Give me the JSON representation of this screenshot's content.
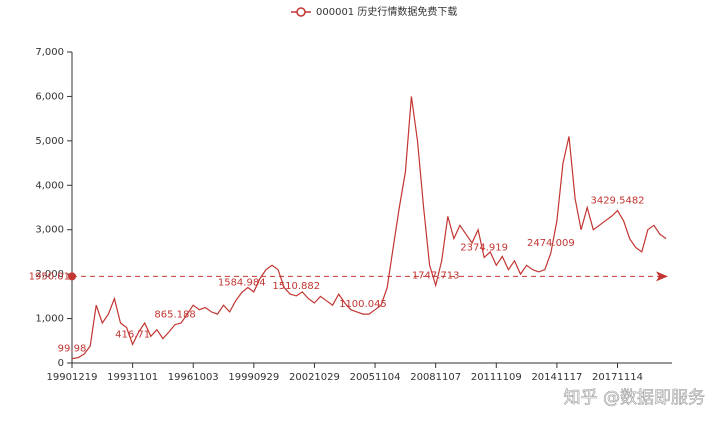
{
  "chart_data": {
    "type": "line",
    "legend": "000001 历史行情数据免费下载",
    "watermark": "知乎 @数据即服务",
    "categories": [
      "19901219",
      null,
      null,
      null,
      null,
      null,
      null,
      null,
      null,
      null,
      "19931101",
      null,
      null,
      null,
      null,
      null,
      null,
      null,
      null,
      null,
      "19961003",
      null,
      null,
      null,
      null,
      null,
      null,
      null,
      null,
      null,
      "19990929",
      null,
      null,
      null,
      null,
      null,
      null,
      null,
      null,
      null,
      "20021029",
      null,
      null,
      null,
      null,
      null,
      null,
      null,
      null,
      null,
      "20051104",
      null,
      null,
      null,
      null,
      null,
      null,
      null,
      null,
      null,
      "20081107",
      null,
      null,
      null,
      null,
      null,
      null,
      null,
      null,
      null,
      "20111109",
      null,
      null,
      null,
      null,
      null,
      null,
      null,
      null,
      null,
      "20141117",
      null,
      null,
      null,
      null,
      null,
      null,
      null,
      null,
      null,
      "20171114",
      null,
      null,
      null,
      null,
      null,
      null,
      null,
      null
    ],
    "series": [
      {
        "name": "000001 历史行情数据免费下载",
        "color": "#c23531",
        "values": [
          99.98,
          120,
          200,
          380,
          1300,
          900,
          1100,
          1450,
          900,
          800,
          416.71,
          700,
          900,
          600,
          750,
          550,
          700,
          865.188,
          900,
          1100,
          1300,
          1200,
          1250,
          1150,
          1100,
          1300,
          1150,
          1400,
          1584.984,
          1700,
          1600,
          1900,
          2100,
          2200,
          2100,
          1700,
          1550,
          1510.882,
          1600,
          1450,
          1350,
          1500,
          1400,
          1300,
          1550,
          1350,
          1200,
          1150,
          1100.045,
          1100,
          1200,
          1300,
          1700,
          2600,
          3500,
          4300,
          6000,
          5000,
          3500,
          2200,
          1747.713,
          2300,
          3300,
          2800,
          3100,
          2900,
          2700,
          3000,
          2374.919,
          2500,
          2200,
          2400,
          2100,
          2300,
          2000,
          2200,
          2100,
          2050,
          2100,
          2474.009,
          3200,
          4500,
          5100,
          3700,
          3000,
          3500,
          3000,
          3100,
          3200,
          3300,
          3429.5482,
          3200,
          2800,
          2600,
          2500,
          3000,
          3100,
          2900,
          2800
        ],
        "value_labels": [
          "99.98",
          null,
          null,
          null,
          null,
          null,
          null,
          null,
          null,
          null,
          "416.71",
          null,
          null,
          null,
          null,
          null,
          null,
          "865.188",
          null,
          null,
          null,
          null,
          null,
          null,
          null,
          null,
          null,
          null,
          "1584.984",
          null,
          null,
          null,
          null,
          null,
          null,
          null,
          null,
          "1510.882",
          null,
          null,
          null,
          null,
          null,
          null,
          null,
          null,
          null,
          null,
          "1100.045",
          null,
          null,
          null,
          null,
          null,
          null,
          null,
          null,
          null,
          null,
          null,
          "1747.713",
          null,
          null,
          null,
          null,
          null,
          null,
          null,
          "2374.919",
          null,
          null,
          null,
          null,
          null,
          null,
          null,
          null,
          null,
          null,
          "2474.009",
          null,
          null,
          null,
          null,
          null,
          null,
          null,
          null,
          null,
          null,
          "3429.5482",
          null,
          null,
          null,
          null,
          null,
          null,
          null,
          null
        ]
      }
    ],
    "average_line": 1950.01,
    "ylim": [
      0,
      7000
    ],
    "yticks": [
      0,
      {
        "value": 1000,
        "label": "1,000"
      },
      {
        "value": 2000,
        "label": "2,000"
      },
      {
        "value": 3000,
        "label": "3,000"
      },
      {
        "value": 4000,
        "label": "4,000"
      },
      {
        "value": 5000,
        "label": "5,000"
      },
      {
        "value": 6000,
        "label": "6,000"
      },
      {
        "value": 7000,
        "label": "7,000"
      }
    ],
    "grid": false
  }
}
